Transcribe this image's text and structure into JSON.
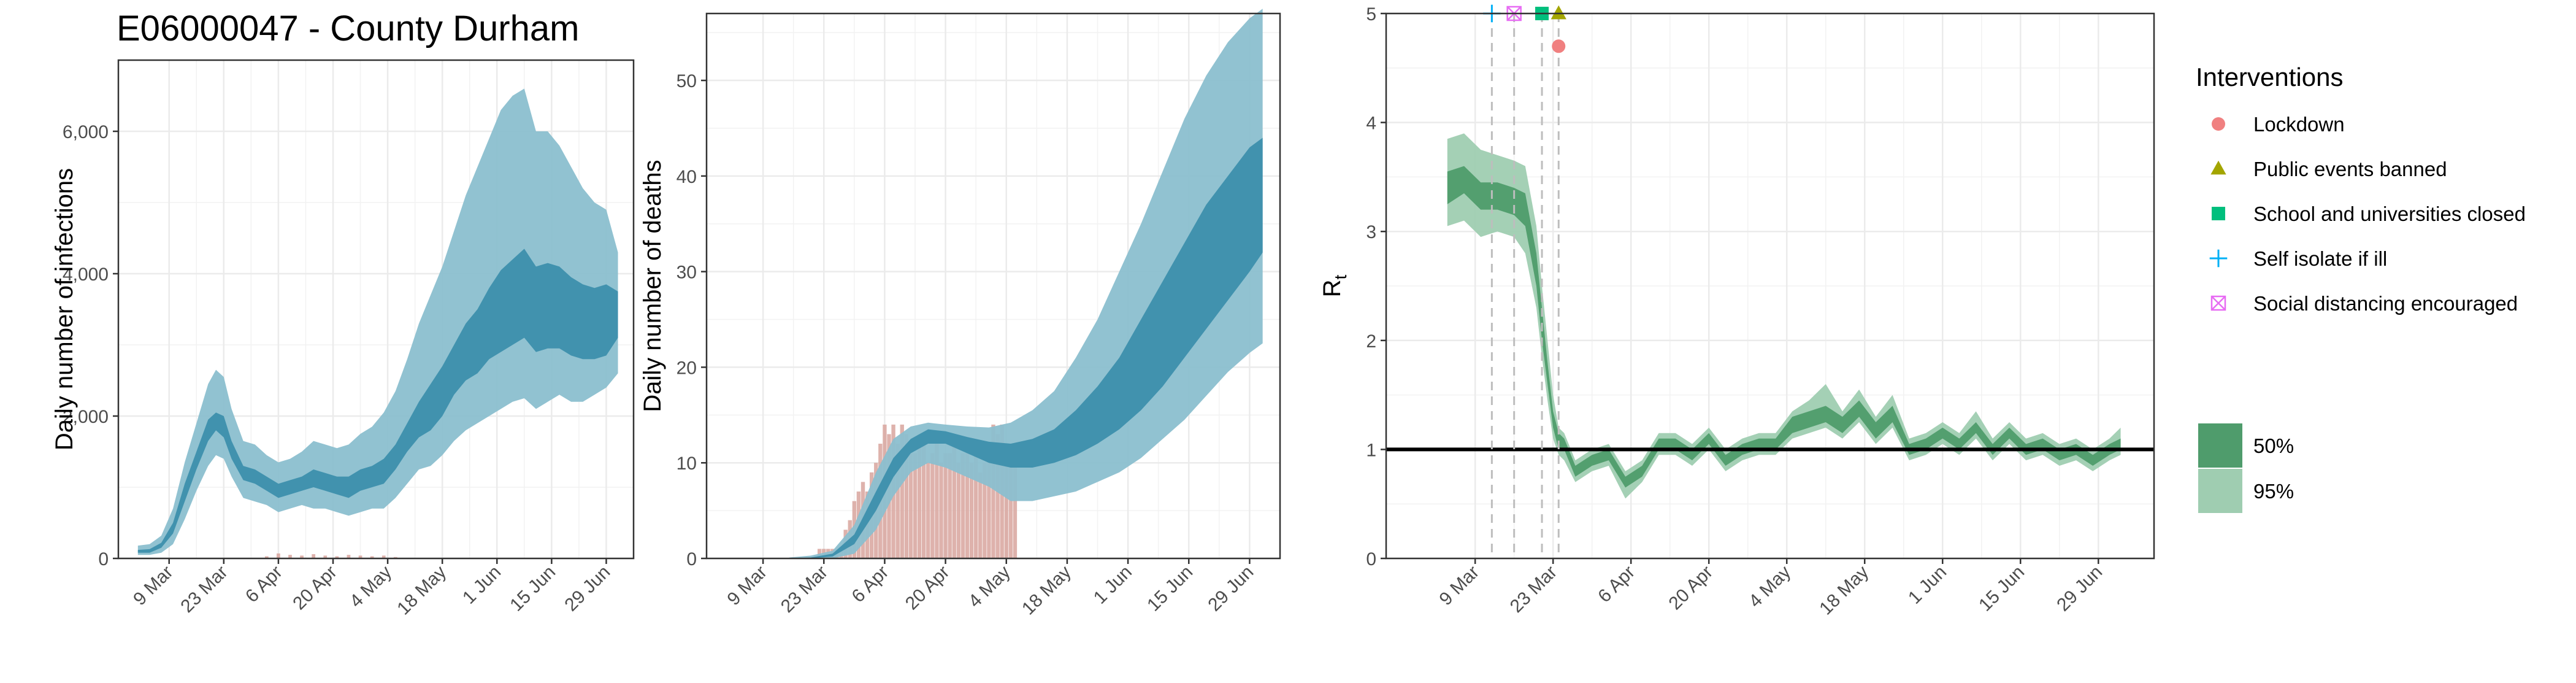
{
  "title": "E06000047 - County Durham",
  "colors": {
    "infections_ci95": "#8bbfcf",
    "infections_ci50": "#3d8fac",
    "deaths_obs": "#d8a59e",
    "rt_ci95": "#9fcdb1",
    "rt_ci50": "#4f9c6c",
    "lockdown": "#f08080",
    "public_events": "#a3a500",
    "schools": "#00bf7d",
    "self_isolate": "#00b0f6",
    "social_distancing": "#e76bf3"
  },
  "x_ticks": [
    "9 Mar",
    "23 Mar",
    "6 Apr",
    "20 Apr",
    "4 May",
    "18 May",
    "1 Jun",
    "15 Jun",
    "29 Jun"
  ],
  "chart_data": [
    {
      "type": "area",
      "panel": "infections",
      "xlabel": "",
      "ylabel": "Daily number of infections",
      "ylim": [
        0,
        7000
      ],
      "y_ticks": [
        "0",
        "2,000",
        "4,000",
        "6,000"
      ],
      "y_tick_values": [
        0,
        2000,
        4000,
        6000
      ],
      "grid": true,
      "x_start": "2020-03-01",
      "x": [
        "2020-03-01",
        "2020-03-04",
        "2020-03-07",
        "2020-03-10",
        "2020-03-13",
        "2020-03-16",
        "2020-03-19",
        "2020-03-21",
        "2020-03-23",
        "2020-03-25",
        "2020-03-28",
        "2020-03-31",
        "2020-04-03",
        "2020-04-06",
        "2020-04-09",
        "2020-04-12",
        "2020-04-15",
        "2020-04-18",
        "2020-04-21",
        "2020-04-24",
        "2020-04-27",
        "2020-04-30",
        "2020-05-03",
        "2020-05-06",
        "2020-05-09",
        "2020-05-12",
        "2020-05-15",
        "2020-05-18",
        "2020-05-21",
        "2020-05-24",
        "2020-05-27",
        "2020-05-30",
        "2020-06-02",
        "2020-06-05",
        "2020-06-08",
        "2020-06-11",
        "2020-06-14",
        "2020-06-17",
        "2020-06-20",
        "2020-06-23",
        "2020-06-26",
        "2020-06-29",
        "2020-07-02"
      ],
      "series": [
        {
          "name": "50%",
          "lower": [
            80,
            80,
            150,
            350,
            800,
            1250,
            1650,
            1800,
            1700,
            1400,
            1100,
            1050,
            950,
            850,
            900,
            950,
            1000,
            950,
            900,
            850,
            950,
            1000,
            1050,
            1250,
            1500,
            1700,
            1800,
            2000,
            2300,
            2500,
            2600,
            2800,
            2900,
            3000,
            3100,
            2900,
            2950,
            2950,
            2850,
            2800,
            2800,
            2850,
            3100
          ],
          "upper": [
            120,
            130,
            220,
            500,
            1050,
            1500,
            1950,
            2050,
            2000,
            1650,
            1300,
            1250,
            1150,
            1050,
            1100,
            1150,
            1250,
            1200,
            1150,
            1150,
            1250,
            1300,
            1400,
            1600,
            1900,
            2200,
            2450,
            2700,
            3000,
            3300,
            3500,
            3800,
            4050,
            4200,
            4350,
            4100,
            4150,
            4100,
            3950,
            3850,
            3800,
            3850,
            3750
          ]
        },
        {
          "name": "95%",
          "lower": [
            50,
            50,
            80,
            200,
            550,
            950,
            1300,
            1450,
            1400,
            1150,
            850,
            800,
            750,
            650,
            700,
            750,
            700,
            700,
            650,
            600,
            650,
            700,
            700,
            850,
            1050,
            1250,
            1300,
            1450,
            1650,
            1800,
            1900,
            2000,
            2100,
            2200,
            2250,
            2100,
            2200,
            2300,
            2200,
            2200,
            2300,
            2400,
            2600
          ],
          "upper": [
            180,
            200,
            320,
            700,
            1350,
            1900,
            2450,
            2650,
            2550,
            2100,
            1650,
            1600,
            1450,
            1350,
            1400,
            1500,
            1650,
            1600,
            1550,
            1600,
            1750,
            1850,
            2050,
            2350,
            2800,
            3300,
            3700,
            4100,
            4600,
            5100,
            5500,
            5900,
            6300,
            6500,
            6600,
            6000,
            6000,
            5800,
            5500,
            5200,
            5000,
            4900,
            4300
          ]
        }
      ],
      "observed_bars": {
        "x": [
          "2020-04-03",
          "2020-04-06",
          "2020-04-09",
          "2020-04-12",
          "2020-04-15",
          "2020-04-18",
          "2020-04-21",
          "2020-04-24",
          "2020-04-27",
          "2020-04-30",
          "2020-05-03",
          "2020-05-06"
        ],
        "values": [
          30,
          70,
          50,
          40,
          60,
          40,
          30,
          50,
          40,
          30,
          40,
          20
        ]
      }
    },
    {
      "type": "area",
      "panel": "deaths",
      "xlabel": "",
      "ylabel": "Daily number of deaths",
      "ylim": [
        0,
        57
      ],
      "y_ticks": [
        "0",
        "10",
        "20",
        "30",
        "40",
        "50"
      ],
      "y_tick_values": [
        0,
        10,
        20,
        30,
        40,
        50
      ],
      "grid": true,
      "x_start": "2020-03-01",
      "x": [
        "2020-03-15",
        "2020-03-20",
        "2020-03-25",
        "2020-03-30",
        "2020-04-04",
        "2020-04-08",
        "2020-04-12",
        "2020-04-16",
        "2020-04-20",
        "2020-04-25",
        "2020-04-30",
        "2020-05-05",
        "2020-05-10",
        "2020-05-15",
        "2020-05-20",
        "2020-05-25",
        "2020-05-30",
        "2020-06-04",
        "2020-06-09",
        "2020-06-14",
        "2020-06-19",
        "2020-06-24",
        "2020-06-29",
        "2020-07-02"
      ],
      "series": [
        {
          "name": "50%",
          "lower": [
            0,
            0,
            0.2,
            1.5,
            5,
            8.5,
            11,
            12,
            12,
            11,
            10,
            9.5,
            9.5,
            10,
            10.8,
            12,
            13.5,
            15.5,
            18,
            21,
            24,
            27,
            30,
            32
          ],
          "upper": [
            0,
            0.1,
            0.5,
            2.5,
            7,
            10.5,
            12.5,
            13.5,
            13.3,
            12.7,
            12.2,
            12,
            12.5,
            13.5,
            15.5,
            18,
            21,
            25,
            29,
            33,
            37,
            40,
            43,
            44
          ]
        },
        {
          "name": "95%",
          "lower": [
            0,
            0,
            0,
            0.5,
            3,
            6.5,
            9,
            10,
            9.5,
            8.5,
            7.5,
            6,
            6,
            6.5,
            7,
            8,
            9,
            10.5,
            12.5,
            14.5,
            17,
            19.5,
            21.5,
            22.5
          ],
          "upper": [
            0.1,
            0.3,
            0.8,
            3.5,
            9,
            12.5,
            13.8,
            14.2,
            14,
            13.8,
            13.7,
            14.2,
            15.5,
            17.5,
            21,
            25,
            30,
            35,
            40.5,
            46,
            50.5,
            54,
            56.5,
            57.5
          ]
        }
      ],
      "observed_bars": {
        "x": [
          "2020-03-22",
          "2020-03-23",
          "2020-03-24",
          "2020-03-25",
          "2020-03-26",
          "2020-03-27",
          "2020-03-28",
          "2020-03-29",
          "2020-03-30",
          "2020-03-31",
          "2020-04-01",
          "2020-04-02",
          "2020-04-03",
          "2020-04-04",
          "2020-04-05",
          "2020-04-06",
          "2020-04-07",
          "2020-04-08",
          "2020-04-09",
          "2020-04-10",
          "2020-04-11",
          "2020-04-12",
          "2020-04-13",
          "2020-04-14",
          "2020-04-15",
          "2020-04-16",
          "2020-04-17",
          "2020-04-18",
          "2020-04-19",
          "2020-04-20",
          "2020-04-21",
          "2020-04-22",
          "2020-04-23",
          "2020-04-24",
          "2020-04-25",
          "2020-04-26",
          "2020-04-27",
          "2020-04-28",
          "2020-04-29",
          "2020-04-30",
          "2020-05-01",
          "2020-05-02",
          "2020-05-03",
          "2020-05-04",
          "2020-05-05",
          "2020-05-06"
        ],
        "values": [
          1,
          1,
          1,
          1,
          1,
          1,
          3,
          4,
          6,
          7,
          8,
          7,
          9,
          10,
          12,
          14,
          13,
          14,
          12,
          14,
          13,
          12,
          11,
          13,
          12,
          10,
          11,
          12,
          10,
          11,
          11,
          12,
          10,
          11,
          12,
          10,
          11,
          9,
          10,
          11,
          14,
          13,
          14,
          10,
          12,
          10
        ]
      }
    },
    {
      "type": "area",
      "panel": "rt",
      "xlabel": "",
      "ylabel": "R",
      "ylabel_subscript": "t",
      "ylim": [
        0,
        5
      ],
      "y_ticks": [
        "0",
        "1",
        "2",
        "3",
        "4",
        "5"
      ],
      "y_tick_values": [
        0,
        1,
        2,
        3,
        4,
        5
      ],
      "grid": true,
      "reference_line": 1,
      "x_start": "2020-03-01",
      "x": [
        "2020-03-04",
        "2020-03-07",
        "2020-03-10",
        "2020-03-13",
        "2020-03-16",
        "2020-03-18",
        "2020-03-20",
        "2020-03-21",
        "2020-03-22",
        "2020-03-23",
        "2020-03-24",
        "2020-03-25",
        "2020-03-27",
        "2020-03-30",
        "2020-04-02",
        "2020-04-05",
        "2020-04-08",
        "2020-04-11",
        "2020-04-14",
        "2020-04-17",
        "2020-04-20",
        "2020-04-23",
        "2020-04-26",
        "2020-04-29",
        "2020-05-02",
        "2020-05-05",
        "2020-05-08",
        "2020-05-11",
        "2020-05-14",
        "2020-05-17",
        "2020-05-20",
        "2020-05-23",
        "2020-05-26",
        "2020-05-29",
        "2020-06-01",
        "2020-06-04",
        "2020-06-07",
        "2020-06-10",
        "2020-06-13",
        "2020-06-16",
        "2020-06-19",
        "2020-06-22",
        "2020-06-25",
        "2020-06-28",
        "2020-07-01",
        "2020-07-03"
      ],
      "series": [
        {
          "name": "50%",
          "lower": [
            3.25,
            3.35,
            3.2,
            3.2,
            3.15,
            3.05,
            2.5,
            2.0,
            1.6,
            1.2,
            1.0,
            1.0,
            0.75,
            0.85,
            0.9,
            0.65,
            0.75,
            1.0,
            1.0,
            0.9,
            1.05,
            0.85,
            0.95,
            1.0,
            1.0,
            1.15,
            1.2,
            1.25,
            1.15,
            1.3,
            1.1,
            1.25,
            0.95,
            1.0,
            1.1,
            1.0,
            1.15,
            0.95,
            1.1,
            0.95,
            1.0,
            0.9,
            0.95,
            0.85,
            0.95,
            1.0
          ],
          "upper": [
            3.55,
            3.6,
            3.45,
            3.45,
            3.4,
            3.35,
            2.8,
            2.3,
            1.8,
            1.35,
            1.15,
            1.1,
            0.85,
            0.95,
            1.0,
            0.75,
            0.85,
            1.1,
            1.1,
            1.0,
            1.15,
            0.95,
            1.05,
            1.1,
            1.1,
            1.3,
            1.35,
            1.4,
            1.3,
            1.45,
            1.25,
            1.4,
            1.05,
            1.1,
            1.2,
            1.1,
            1.25,
            1.05,
            1.2,
            1.05,
            1.1,
            1.0,
            1.05,
            0.95,
            1.05,
            1.1
          ]
        },
        {
          "name": "95%",
          "lower": [
            3.05,
            3.1,
            2.95,
            3.0,
            2.95,
            2.8,
            2.3,
            1.85,
            1.45,
            1.1,
            0.95,
            0.9,
            0.7,
            0.8,
            0.85,
            0.55,
            0.7,
            0.95,
            0.95,
            0.85,
            1.0,
            0.8,
            0.9,
            0.95,
            0.95,
            1.1,
            1.15,
            1.2,
            1.1,
            1.25,
            1.05,
            1.2,
            0.9,
            0.95,
            1.05,
            0.95,
            1.1,
            0.9,
            1.05,
            0.9,
            0.95,
            0.85,
            0.9,
            0.8,
            0.9,
            0.95
          ],
          "upper": [
            3.85,
            3.9,
            3.75,
            3.7,
            3.65,
            3.6,
            3.05,
            2.5,
            2.0,
            1.5,
            1.2,
            1.15,
            0.9,
            1.0,
            1.05,
            0.8,
            0.9,
            1.15,
            1.15,
            1.05,
            1.2,
            1.0,
            1.1,
            1.15,
            1.15,
            1.35,
            1.45,
            1.6,
            1.35,
            1.55,
            1.3,
            1.5,
            1.1,
            1.15,
            1.25,
            1.15,
            1.35,
            1.1,
            1.25,
            1.1,
            1.15,
            1.05,
            1.1,
            1.0,
            1.1,
            1.2
          ]
        }
      ],
      "interventions": [
        {
          "name": "Self isolate if ill",
          "date": "2020-03-12",
          "marker": "plus",
          "color": "#00b0f6",
          "y": 5
        },
        {
          "name": "Social distancing encouraged",
          "date": "2020-03-16",
          "marker": "boxx",
          "color": "#e76bf3",
          "y": 5
        },
        {
          "name": "School and universities closed",
          "date": "2020-03-21",
          "marker": "square",
          "color": "#00bf7d",
          "y": 5
        },
        {
          "name": "Public events banned",
          "date": "2020-03-24",
          "marker": "triangle",
          "color": "#a3a500",
          "y": 5
        },
        {
          "name": "Lockdown",
          "date": "2020-03-24",
          "marker": "circle",
          "color": "#f08080",
          "y": 4.7
        }
      ]
    }
  ],
  "legend": {
    "title": "Interventions",
    "placement": "right",
    "items": [
      {
        "label": "Lockdown",
        "marker": "circle",
        "color": "#f08080"
      },
      {
        "label": "Public events banned",
        "marker": "triangle",
        "color": "#a3a500"
      },
      {
        "label": "School and universities closed",
        "marker": "square",
        "color": "#00bf7d"
      },
      {
        "label": "Self isolate if ill",
        "marker": "plus",
        "color": "#00b0f6"
      },
      {
        "label": "Social distancing encouraged",
        "marker": "boxx",
        "color": "#e76bf3"
      }
    ],
    "ci_items": [
      {
        "label": "50%",
        "color": "#4f9c6c"
      },
      {
        "label": "95%",
        "color": "#9fcdb1"
      }
    ]
  }
}
